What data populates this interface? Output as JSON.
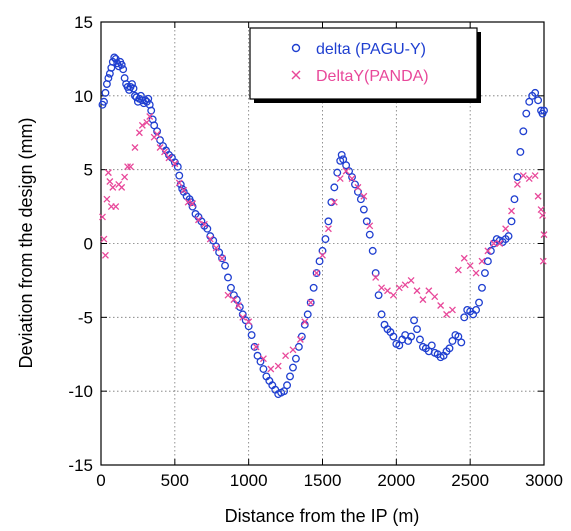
{
  "chart_data": {
    "type": "scatter",
    "xlabel": "Distance from the IP (m)",
    "ylabel": "Deviation from the design (mm)",
    "xlim": [
      0,
      3000
    ],
    "ylim": [
      -15,
      15
    ],
    "xticks": [
      0,
      500,
      1000,
      1500,
      2000,
      2500,
      3000
    ],
    "yticks": [
      -15,
      -10,
      -5,
      0,
      5,
      10,
      15
    ],
    "grid": "dotted",
    "legend_position": "top-right",
    "series": [
      {
        "name": "delta (PAGU-Y)",
        "marker": "open-circle",
        "color": "#1f3fd0",
        "points": [
          [
            10,
            9.4
          ],
          [
            20,
            9.6
          ],
          [
            30,
            10.2
          ],
          [
            40,
            10.8
          ],
          [
            50,
            11.2
          ],
          [
            60,
            11.5
          ],
          [
            70,
            11.9
          ],
          [
            80,
            12.3
          ],
          [
            90,
            12.6
          ],
          [
            100,
            12.5
          ],
          [
            110,
            12.2
          ],
          [
            120,
            12.0
          ],
          [
            130,
            12.3
          ],
          [
            140,
            12.1
          ],
          [
            150,
            11.8
          ],
          [
            160,
            11.2
          ],
          [
            170,
            10.8
          ],
          [
            180,
            10.6
          ],
          [
            190,
            10.4
          ],
          [
            200,
            10.6
          ],
          [
            210,
            10.8
          ],
          [
            220,
            10.5
          ],
          [
            230,
            10.0
          ],
          [
            240,
            9.9
          ],
          [
            250,
            9.6
          ],
          [
            260,
            9.8
          ],
          [
            270,
            10.0
          ],
          [
            280,
            9.7
          ],
          [
            290,
            9.5
          ],
          [
            300,
            9.7
          ],
          [
            310,
            9.6
          ],
          [
            320,
            9.8
          ],
          [
            330,
            9.4
          ],
          [
            340,
            9.0
          ],
          [
            350,
            8.4
          ],
          [
            360,
            8.0
          ],
          [
            380,
            7.6
          ],
          [
            400,
            7.0
          ],
          [
            420,
            6.6
          ],
          [
            440,
            6.3
          ],
          [
            460,
            6.0
          ],
          [
            480,
            5.8
          ],
          [
            500,
            5.5
          ],
          [
            520,
            5.2
          ],
          [
            530,
            4.6
          ],
          [
            540,
            4.0
          ],
          [
            550,
            3.7
          ],
          [
            560,
            3.5
          ],
          [
            580,
            3.2
          ],
          [
            600,
            3.0
          ],
          [
            610,
            2.8
          ],
          [
            620,
            2.5
          ],
          [
            640,
            2.0
          ],
          [
            660,
            1.8
          ],
          [
            680,
            1.5
          ],
          [
            700,
            1.2
          ],
          [
            720,
            1.0
          ],
          [
            740,
            0.5
          ],
          [
            760,
            0.2
          ],
          [
            780,
            -0.2
          ],
          [
            800,
            -0.6
          ],
          [
            820,
            -1.0
          ],
          [
            840,
            -1.5
          ],
          [
            860,
            -2.3
          ],
          [
            880,
            -3.0
          ],
          [
            900,
            -3.5
          ],
          [
            920,
            -3.8
          ],
          [
            940,
            -4.3
          ],
          [
            960,
            -4.8
          ],
          [
            980,
            -5.2
          ],
          [
            1000,
            -5.6
          ],
          [
            1020,
            -6.2
          ],
          [
            1040,
            -7.0
          ],
          [
            1060,
            -7.6
          ],
          [
            1080,
            -8.0
          ],
          [
            1100,
            -8.5
          ],
          [
            1120,
            -9.0
          ],
          [
            1140,
            -9.3
          ],
          [
            1160,
            -9.6
          ],
          [
            1180,
            -9.9
          ],
          [
            1200,
            -10.2
          ],
          [
            1220,
            -10.1
          ],
          [
            1240,
            -10.0
          ],
          [
            1260,
            -9.6
          ],
          [
            1280,
            -9.0
          ],
          [
            1300,
            -8.4
          ],
          [
            1320,
            -7.8
          ],
          [
            1340,
            -7.0
          ],
          [
            1360,
            -6.3
          ],
          [
            1380,
            -5.5
          ],
          [
            1400,
            -4.8
          ],
          [
            1420,
            -4.0
          ],
          [
            1440,
            -3.0
          ],
          [
            1460,
            -2.0
          ],
          [
            1480,
            -1.2
          ],
          [
            1500,
            -0.5
          ],
          [
            1520,
            0.3
          ],
          [
            1540,
            1.5
          ],
          [
            1560,
            2.8
          ],
          [
            1580,
            3.8
          ],
          [
            1600,
            4.8
          ],
          [
            1620,
            5.6
          ],
          [
            1630,
            6.0
          ],
          [
            1640,
            5.7
          ],
          [
            1660,
            5.3
          ],
          [
            1680,
            4.9
          ],
          [
            1700,
            4.5
          ],
          [
            1720,
            4.0
          ],
          [
            1740,
            3.5
          ],
          [
            1760,
            3.0
          ],
          [
            1780,
            2.3
          ],
          [
            1800,
            1.5
          ],
          [
            1820,
            0.6
          ],
          [
            1840,
            -0.5
          ],
          [
            1860,
            -2.0
          ],
          [
            1880,
            -3.5
          ],
          [
            1900,
            -4.8
          ],
          [
            1920,
            -5.5
          ],
          [
            1940,
            -5.8
          ],
          [
            1960,
            -6.0
          ],
          [
            1980,
            -6.3
          ],
          [
            2000,
            -6.8
          ],
          [
            2020,
            -6.9
          ],
          [
            2040,
            -6.5
          ],
          [
            2060,
            -6.2
          ],
          [
            2080,
            -6.6
          ],
          [
            2100,
            -6.3
          ],
          [
            2120,
            -5.2
          ],
          [
            2140,
            -5.8
          ],
          [
            2160,
            -6.5
          ],
          [
            2180,
            -7.0
          ],
          [
            2200,
            -7.1
          ],
          [
            2220,
            -7.3
          ],
          [
            2240,
            -6.9
          ],
          [
            2260,
            -7.4
          ],
          [
            2280,
            -7.5
          ],
          [
            2300,
            -7.7
          ],
          [
            2320,
            -7.6
          ],
          [
            2340,
            -7.3
          ],
          [
            2360,
            -7.1
          ],
          [
            2380,
            -6.6
          ],
          [
            2400,
            -6.2
          ],
          [
            2420,
            -6.3
          ],
          [
            2440,
            -6.7
          ],
          [
            2460,
            -5.0
          ],
          [
            2480,
            -4.5
          ],
          [
            2500,
            -4.6
          ],
          [
            2520,
            -4.8
          ],
          [
            2540,
            -4.5
          ],
          [
            2560,
            -4.0
          ],
          [
            2580,
            -3.0
          ],
          [
            2600,
            -2.0
          ],
          [
            2620,
            -1.2
          ],
          [
            2640,
            -0.5
          ],
          [
            2660,
            0.0
          ],
          [
            2680,
            0.3
          ],
          [
            2700,
            0.2
          ],
          [
            2720,
            0.1
          ],
          [
            2740,
            0.3
          ],
          [
            2760,
            0.5
          ],
          [
            2780,
            1.5
          ],
          [
            2800,
            3.0
          ],
          [
            2820,
            4.5
          ],
          [
            2840,
            6.2
          ],
          [
            2860,
            7.6
          ],
          [
            2880,
            8.8
          ],
          [
            2900,
            9.6
          ],
          [
            2920,
            10.0
          ],
          [
            2940,
            10.2
          ],
          [
            2960,
            9.7
          ],
          [
            2980,
            9.0
          ],
          [
            2990,
            8.8
          ],
          [
            3000,
            9.0
          ]
        ]
      },
      {
        "name": "DeltaY(PANDA)",
        "marker": "cross",
        "color": "#e8489a",
        "points": [
          [
            10,
            1.8
          ],
          [
            20,
            0.3
          ],
          [
            30,
            -0.8
          ],
          [
            40,
            3.0
          ],
          [
            50,
            4.8
          ],
          [
            60,
            4.2
          ],
          [
            70,
            2.5
          ],
          [
            80,
            3.8
          ],
          [
            100,
            2.5
          ],
          [
            120,
            4.0
          ],
          [
            140,
            3.8
          ],
          [
            160,
            4.5
          ],
          [
            180,
            5.2
          ],
          [
            200,
            5.2
          ],
          [
            230,
            6.5
          ],
          [
            260,
            7.5
          ],
          [
            280,
            8.0
          ],
          [
            310,
            8.2
          ],
          [
            330,
            8.6
          ],
          [
            360,
            7.2
          ],
          [
            380,
            7.4
          ],
          [
            400,
            6.5
          ],
          [
            430,
            6.2
          ],
          [
            460,
            5.8
          ],
          [
            500,
            5.4
          ],
          [
            530,
            4.1
          ],
          [
            560,
            3.6
          ],
          [
            590,
            2.8
          ],
          [
            620,
            2.7
          ],
          [
            660,
            1.6
          ],
          [
            700,
            1.3
          ],
          [
            740,
            0.3
          ],
          [
            780,
            -0.3
          ],
          [
            820,
            -1.0
          ],
          [
            860,
            -3.5
          ],
          [
            900,
            -3.8
          ],
          [
            930,
            -4.2
          ],
          [
            960,
            -5.0
          ],
          [
            1000,
            -5.3
          ],
          [
            1050,
            -7.0
          ],
          [
            1100,
            -7.8
          ],
          [
            1150,
            -8.5
          ],
          [
            1200,
            -8.3
          ],
          [
            1250,
            -7.6
          ],
          [
            1300,
            -7.2
          ],
          [
            1350,
            -6.5
          ],
          [
            1380,
            -5.3
          ],
          [
            1420,
            -4.0
          ],
          [
            1460,
            -2.0
          ],
          [
            1500,
            -0.8
          ],
          [
            1540,
            1.0
          ],
          [
            1580,
            2.8
          ],
          [
            1620,
            4.4
          ],
          [
            1660,
            4.9
          ],
          [
            1700,
            4.4
          ],
          [
            1740,
            3.8
          ],
          [
            1780,
            3.2
          ],
          [
            1820,
            1.2
          ],
          [
            1860,
            -2.3
          ],
          [
            1900,
            -3.0
          ],
          [
            1940,
            -3.2
          ],
          [
            1980,
            -3.5
          ],
          [
            2020,
            -3.0
          ],
          [
            2060,
            -2.8
          ],
          [
            2100,
            -2.5
          ],
          [
            2140,
            -3.2
          ],
          [
            2180,
            -3.8
          ],
          [
            2220,
            -3.2
          ],
          [
            2260,
            -3.6
          ],
          [
            2300,
            -4.2
          ],
          [
            2340,
            -4.8
          ],
          [
            2380,
            -4.5
          ],
          [
            2420,
            -1.8
          ],
          [
            2460,
            -1.0
          ],
          [
            2500,
            -1.5
          ],
          [
            2540,
            -2.0
          ],
          [
            2580,
            -1.2
          ],
          [
            2620,
            -0.5
          ],
          [
            2660,
            0.0
          ],
          [
            2700,
            0.0
          ],
          [
            2740,
            1.0
          ],
          [
            2780,
            2.2
          ],
          [
            2820,
            4.0
          ],
          [
            2860,
            4.6
          ],
          [
            2900,
            4.4
          ],
          [
            2940,
            4.6
          ],
          [
            2960,
            3.2
          ],
          [
            2980,
            2.3
          ],
          [
            2990,
            1.9
          ],
          [
            3000,
            0.6
          ],
          [
            2995,
            -1.2
          ]
        ]
      }
    ]
  }
}
